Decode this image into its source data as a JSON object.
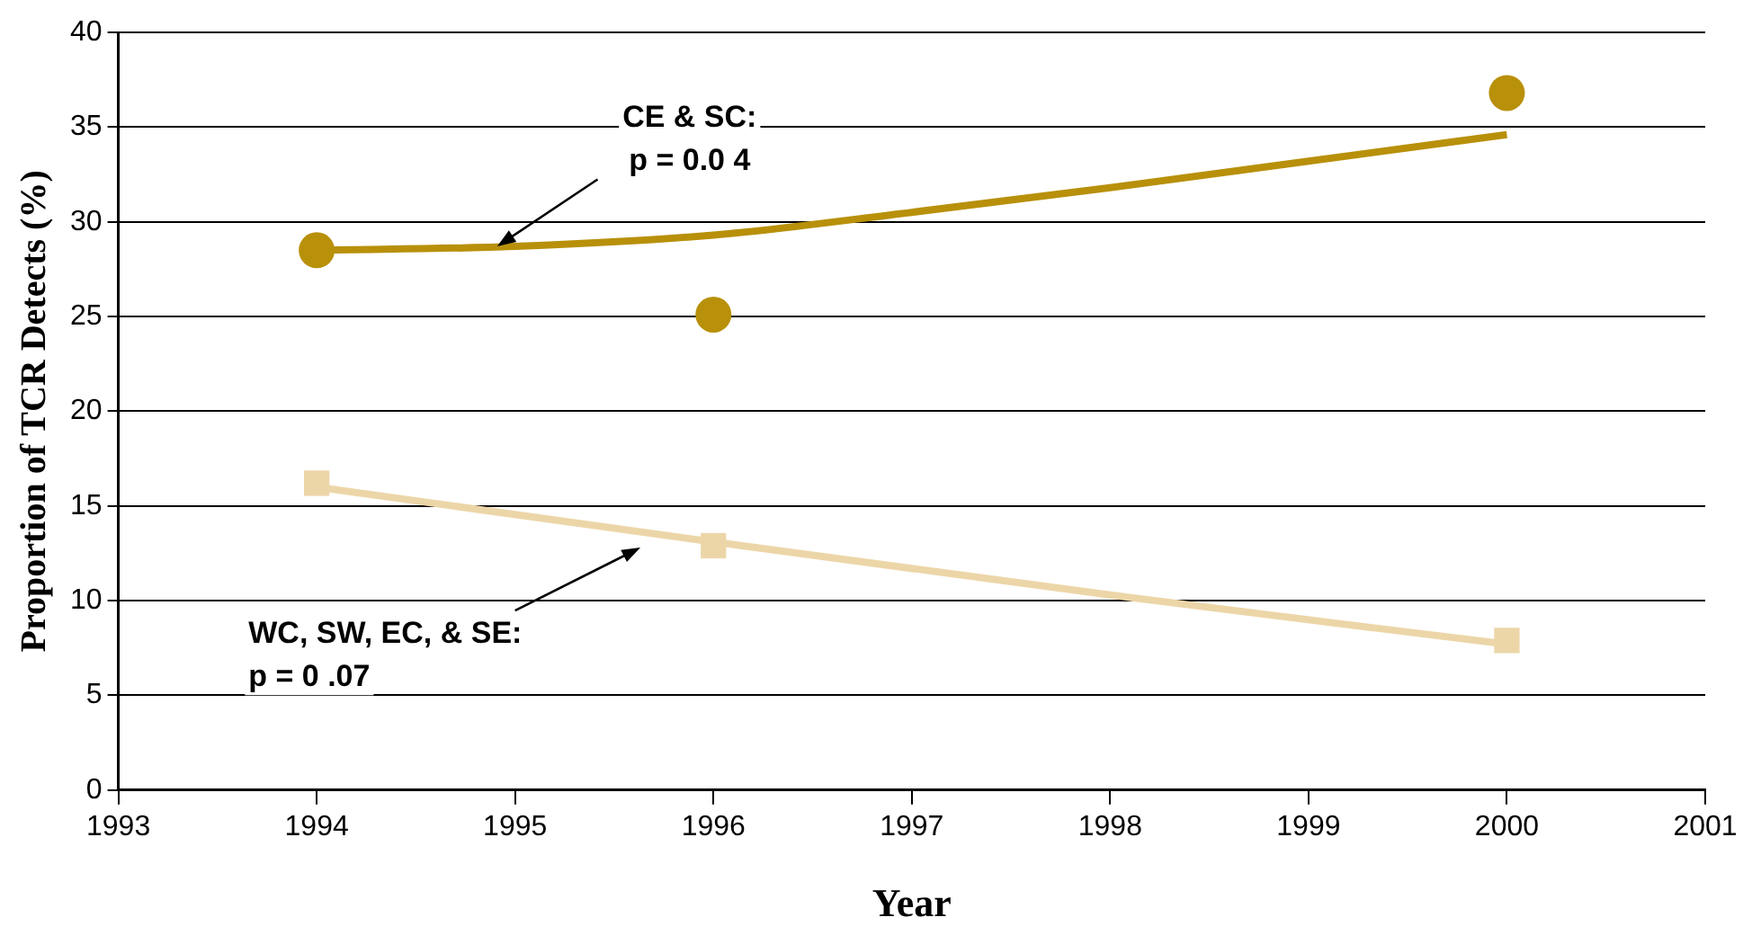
{
  "chart_data": {
    "type": "line",
    "xlabel": "Year",
    "ylabel": "Proportion of TCR Detects (%)",
    "xlim": [
      1993,
      2001
    ],
    "xticks": [
      1993,
      1994,
      1995,
      1996,
      1997,
      1998,
      1999,
      2000,
      2001
    ],
    "ylim": [
      0,
      40
    ],
    "yticks": [
      0,
      5,
      10,
      15,
      20,
      25,
      30,
      35,
      40
    ],
    "grid": "y",
    "legend": false,
    "series": [
      {
        "type": "scatter",
        "marker": "circle",
        "color": "#b8900a",
        "x": [
          1994,
          1996,
          2000
        ],
        "values": [
          28.5,
          25.1,
          36.8
        ]
      },
      {
        "marker": "none",
        "color": "#b8900a",
        "x": [
          1994,
          1995,
          1996,
          1997,
          1998,
          1999,
          2000
        ],
        "values": [
          28.5,
          28.7,
          29.3,
          30.5,
          31.8,
          33.2,
          34.6
        ]
      },
      {
        "type": "scatter",
        "marker": "square",
        "color": "#ecd6a8",
        "x": [
          1994,
          1996,
          2000
        ],
        "values": [
          16.2,
          12.9,
          7.9
        ]
      },
      {
        "marker": "none",
        "color": "#ecd6a8",
        "x": [
          1994,
          1996,
          1998,
          2000
        ],
        "values": [
          16.0,
          13.1,
          10.3,
          7.7
        ]
      }
    ],
    "annotations": [
      {
        "text": "CE & SC:\np = 0.0 4",
        "x": 1994.91,
        "y": 28.7
      },
      "WC, SW, EC, & SE:\np = 0 .07"
    ]
  }
}
